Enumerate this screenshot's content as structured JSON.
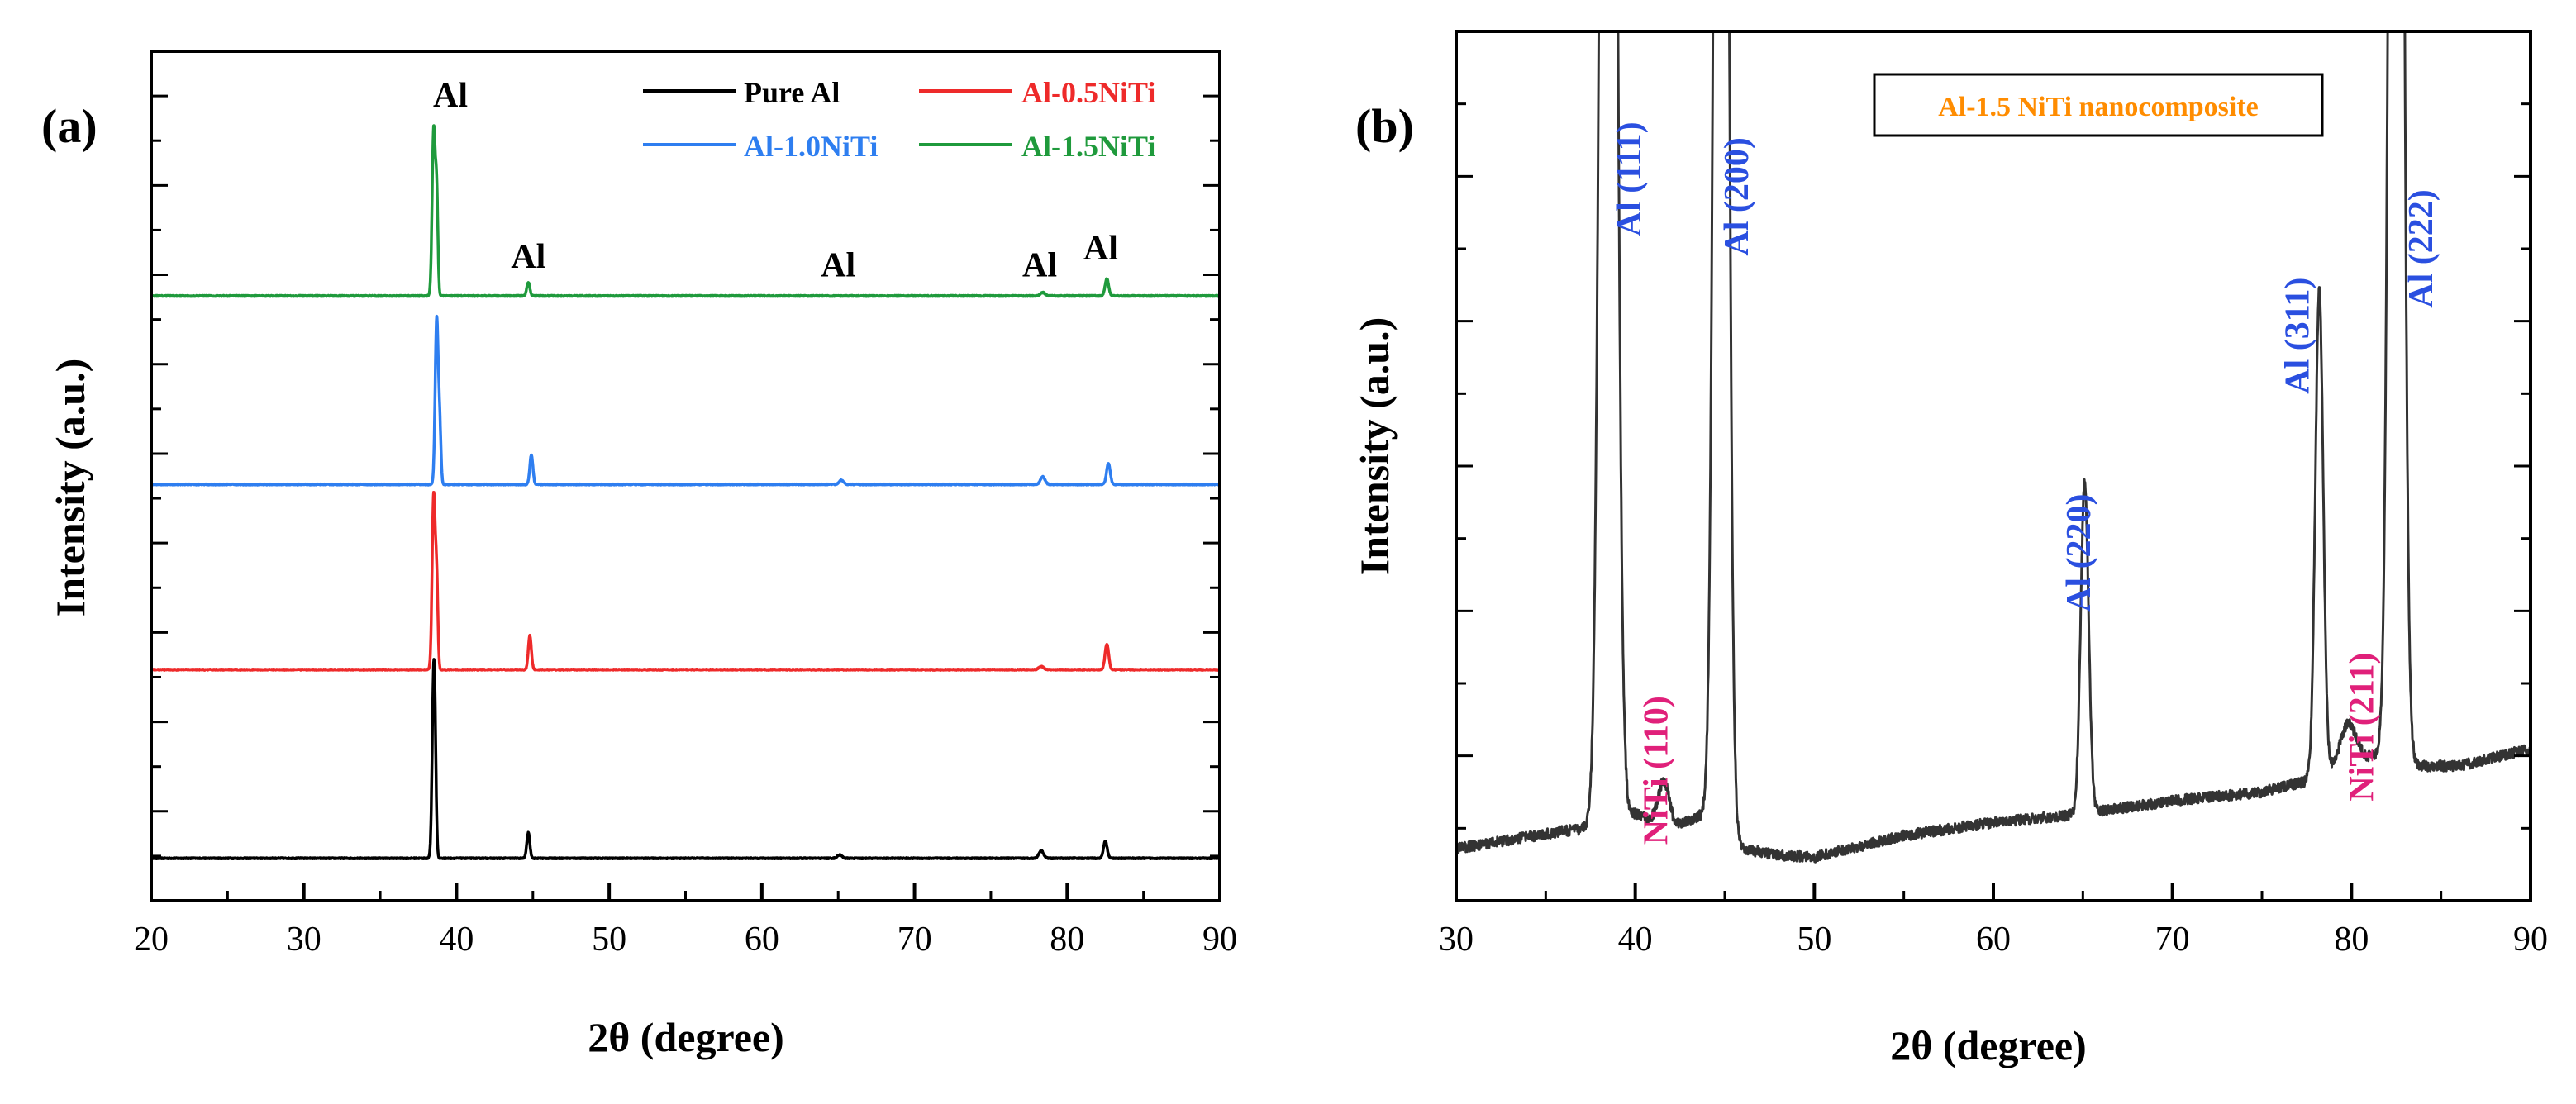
{
  "figure": {
    "panel_a_label": "(a)",
    "panel_b_label": "(b)"
  },
  "colors": {
    "axis": "#000000",
    "pure_al": "#000000",
    "al_05": "#ee2a2a",
    "al_10": "#2e7ef0",
    "al_15": "#1f9a3c",
    "b_trace": "#333333",
    "al_label": "#2a4fe0",
    "niti_label": "#e0207a",
    "legend_b_text": "#ff8c00"
  },
  "chart_data": [
    {
      "type": "line",
      "panel": "(a)",
      "title": "",
      "xlabel": "2θ (degree)",
      "ylabel": "Intensity (a.u.)",
      "xlim": [
        20,
        90
      ],
      "ylim": [
        0,
        1
      ],
      "xticks": [
        20,
        30,
        40,
        50,
        60,
        70,
        80,
        90
      ],
      "grid": false,
      "legend_position": "top-right",
      "series": [
        {
          "name": "Pure Al",
          "color_key": "pure_al",
          "baseline": 0.05,
          "peaks": [
            {
              "x": 38.5,
              "h": 0.205,
              "w": 0.1
            },
            {
              "x": 38.6,
              "h": 0.055,
              "w": 0.08
            },
            {
              "x": 44.7,
              "h": 0.03,
              "w": 0.1
            },
            {
              "x": 65.1,
              "h": 0.004,
              "w": 0.15
            },
            {
              "x": 78.3,
              "h": 0.009,
              "w": 0.15
            },
            {
              "x": 82.5,
              "h": 0.02,
              "w": 0.12
            }
          ]
        },
        {
          "name": "Al-0.5NiTi",
          "color_key": "al_05",
          "baseline": 0.272,
          "peaks": [
            {
              "x": 38.5,
              "h": 0.205,
              "w": 0.1
            },
            {
              "x": 38.7,
              "h": 0.1,
              "w": 0.08
            },
            {
              "x": 44.8,
              "h": 0.04,
              "w": 0.1
            },
            {
              "x": 78.3,
              "h": 0.004,
              "w": 0.15
            },
            {
              "x": 82.6,
              "h": 0.03,
              "w": 0.12
            }
          ]
        },
        {
          "name": "Al-1.0NiTi",
          "color_key": "al_10",
          "baseline": 0.49,
          "peaks": [
            {
              "x": 38.7,
              "h": 0.195,
              "w": 0.1
            },
            {
              "x": 38.9,
              "h": 0.065,
              "w": 0.08
            },
            {
              "x": 44.9,
              "h": 0.035,
              "w": 0.1
            },
            {
              "x": 65.2,
              "h": 0.005,
              "w": 0.15
            },
            {
              "x": 78.4,
              "h": 0.009,
              "w": 0.15
            },
            {
              "x": 82.7,
              "h": 0.025,
              "w": 0.12
            }
          ]
        },
        {
          "name": "Al-1.5NiTi",
          "color_key": "al_15",
          "baseline": 0.712,
          "peaks": [
            {
              "x": 38.5,
              "h": 0.195,
              "w": 0.1
            },
            {
              "x": 38.7,
              "h": 0.115,
              "w": 0.08
            },
            {
              "x": 44.7,
              "h": 0.016,
              "w": 0.1
            },
            {
              "x": 78.4,
              "h": 0.004,
              "w": 0.15
            },
            {
              "x": 82.6,
              "h": 0.02,
              "w": 0.12
            }
          ]
        }
      ],
      "annotations": [
        {
          "text": "Al",
          "x": 39.6,
          "y": 0.935
        },
        {
          "text": "Al",
          "x": 44.7,
          "y": 0.745
        },
        {
          "text": "Al",
          "x": 65.0,
          "y": 0.735
        },
        {
          "text": "Al",
          "x": 78.2,
          "y": 0.735
        },
        {
          "text": "Al",
          "x": 82.2,
          "y": 0.755
        }
      ]
    },
    {
      "type": "line",
      "panel": "(b)",
      "title": "",
      "xlabel": "2θ (degree)",
      "ylabel": "Intensity (a.u.)",
      "xlim": [
        30,
        90
      ],
      "ylim": [
        0,
        1
      ],
      "xticks": [
        30,
        40,
        50,
        60,
        70,
        80,
        90
      ],
      "grid": false,
      "legend_position": "top-center",
      "legend": "Al-1.5 NiTi nanocomposite",
      "series": [
        {
          "name": "Al-1.5 NiTi nanocomposite",
          "color_key": "b_trace",
          "background": [
            [
              30,
              0.06
            ],
            [
              33,
              0.07
            ],
            [
              36,
              0.08
            ],
            [
              38,
              0.085
            ],
            [
              40,
              0.1
            ],
            [
              42,
              0.085
            ],
            [
              44,
              0.1
            ],
            [
              46,
              0.06
            ],
            [
              48,
              0.052
            ],
            [
              50,
              0.05
            ],
            [
              55,
              0.075
            ],
            [
              60,
              0.09
            ],
            [
              65,
              0.1
            ],
            [
              70,
              0.115
            ],
            [
              75,
              0.125
            ],
            [
              78,
              0.14
            ],
            [
              80,
              0.16
            ],
            [
              82,
              0.17
            ],
            [
              84,
              0.155
            ],
            [
              86,
              0.155
            ],
            [
              88,
              0.165
            ],
            [
              90,
              0.175
            ]
          ],
          "peaks": [
            {
              "x": 38.5,
              "h": 3.0,
              "w": 0.35
            },
            {
              "x": 41.6,
              "h": 0.05,
              "w": 0.3
            },
            {
              "x": 44.8,
              "h": 3.0,
              "w": 0.3
            },
            {
              "x": 65.1,
              "h": 0.38,
              "w": 0.22
            },
            {
              "x": 78.2,
              "h": 0.56,
              "w": 0.22
            },
            {
              "x": 79.8,
              "h": 0.045,
              "w": 0.45
            },
            {
              "x": 82.5,
              "h": 3.0,
              "w": 0.3
            }
          ]
        }
      ],
      "annotations": [
        {
          "text": "Al (111)",
          "x": 40.3,
          "y": 0.83,
          "kind": "al"
        },
        {
          "text": "Al (200)",
          "x": 46.3,
          "y": 0.81,
          "kind": "al"
        },
        {
          "text": "NiTi (110)",
          "x": 41.8,
          "y": 0.15,
          "kind": "niti"
        },
        {
          "text": "Al (220)",
          "x": 65.4,
          "y": 0.4,
          "kind": "al"
        },
        {
          "text": "Al (311)",
          "x": 77.6,
          "y": 0.65,
          "kind": "al"
        },
        {
          "text": "NiTi (211)",
          "x": 81.2,
          "y": 0.2,
          "kind": "niti"
        },
        {
          "text": "Al (222)",
          "x": 84.5,
          "y": 0.75,
          "kind": "al"
        }
      ]
    }
  ]
}
